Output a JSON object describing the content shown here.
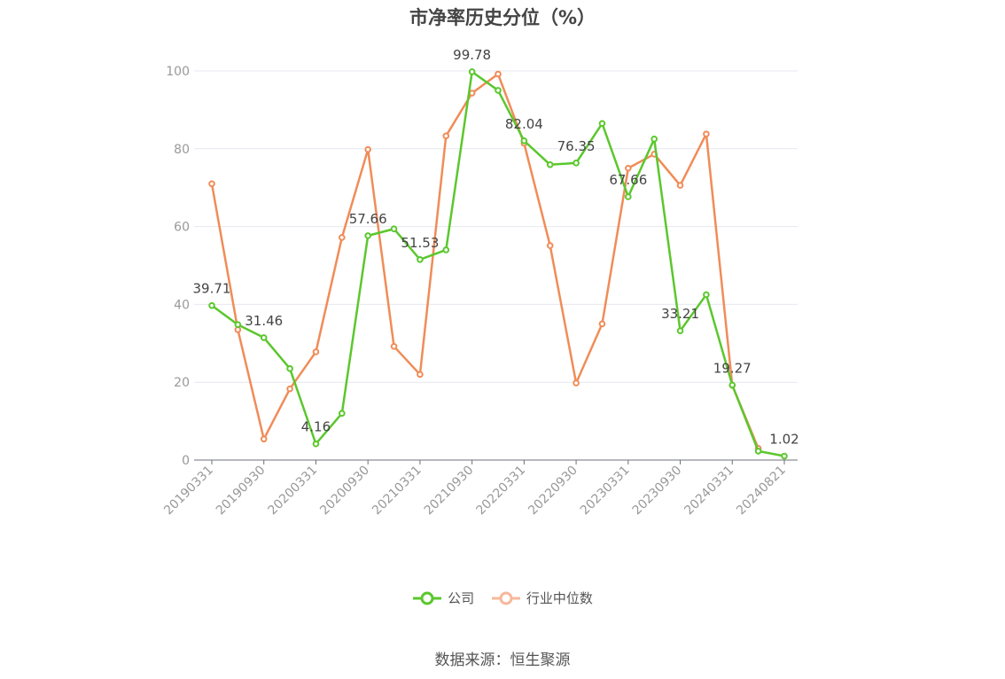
{
  "chart_data": {
    "type": "line",
    "title": "市净率历史分位（%）",
    "xlabel": "",
    "ylabel": "",
    "ylim": [
      0,
      100
    ],
    "yticks": [
      0,
      20,
      40,
      60,
      80,
      100
    ],
    "grid": true,
    "legend_position": "bottom",
    "x": [
      "20190331",
      "20190630",
      "20190930",
      "20191231",
      "20200331",
      "20200630",
      "20200930",
      "20201231",
      "20210331",
      "20210630",
      "20210930",
      "20211231",
      "20220331",
      "20220630",
      "20220930",
      "20221231",
      "20230331",
      "20230630",
      "20230930",
      "20231231",
      "20240331",
      "20240630",
      "20240821"
    ],
    "x_tick_labels": [
      "20190331",
      "20190930",
      "20200331",
      "20200930",
      "20210331",
      "20210930",
      "20220331",
      "20220930",
      "20230331",
      "20230930",
      "20240331",
      "20240821"
    ],
    "series": [
      {
        "name": "公司",
        "color": "#5bc72d",
        "values": [
          39.71,
          34.8,
          31.46,
          23.5,
          4.16,
          12.0,
          57.66,
          59.4,
          51.53,
          54.0,
          99.78,
          95.0,
          82.04,
          75.9,
          76.35,
          86.5,
          67.66,
          82.5,
          33.21,
          42.5,
          19.27,
          2.3,
          1.02
        ],
        "labels": {
          "0": "39.71",
          "2": "31.46",
          "4": "4.16",
          "6": "57.66",
          "8": "51.53",
          "10": "99.78",
          "12": "82.04",
          "14": "76.35",
          "16": "67.66",
          "18": "33.21",
          "20": "19.27",
          "22": "1.02"
        }
      },
      {
        "name": "行业中位数",
        "color": "#f08c58",
        "values": [
          71.0,
          33.5,
          5.4,
          18.3,
          27.8,
          57.2,
          79.8,
          29.2,
          22.0,
          83.3,
          94.3,
          99.2,
          81.4,
          55.1,
          19.8,
          35.0,
          75.0,
          78.6,
          70.6,
          83.8,
          19.2,
          3.0,
          null
        ]
      }
    ]
  },
  "legend": {
    "items": [
      {
        "label": "公司",
        "color": "#5bc72d"
      },
      {
        "label": "行业中位数",
        "color": "#f6b89a"
      }
    ]
  },
  "source": "数据来源：恒生聚源"
}
